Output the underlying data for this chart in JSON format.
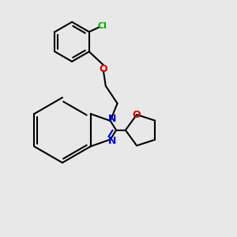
{
  "background_color": "#e8e8e8",
  "bond_color": "#000000",
  "n_color": "#0000cc",
  "o_color": "#cc0000",
  "cl_color": "#00aa00",
  "line_width": 1.5,
  "figsize": [
    3.0,
    3.0
  ],
  "dpi": 100,
  "xlim": [
    0,
    10
  ],
  "ylim": [
    0,
    10
  ]
}
